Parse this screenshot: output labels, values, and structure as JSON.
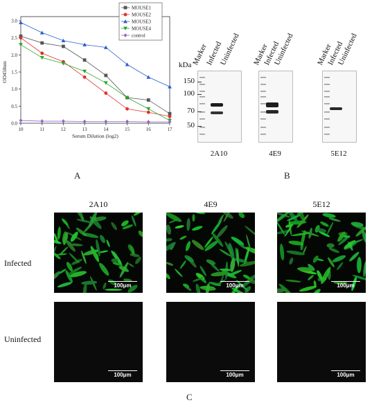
{
  "panels": {
    "a": "A",
    "b": "B",
    "c": "C"
  },
  "chart_data": {
    "type": "line",
    "xlabel": "Serum Dilution (log2)",
    "ylabel": "OD450nm",
    "xlim": [
      10,
      17
    ],
    "ylim": [
      0,
      3.0
    ],
    "xticks": [
      "10",
      "11",
      "12",
      "13",
      "14",
      "15",
      "16",
      "17"
    ],
    "yticks": [
      "0.0",
      "0.5",
      "1.0",
      "1.5",
      "2.0",
      "2.5",
      "3.0"
    ],
    "legend_position": "top-right",
    "x": [
      10,
      11,
      12,
      13,
      14,
      15,
      16,
      17
    ],
    "series": [
      {
        "name": "MOUSE1",
        "color": "#555555",
        "marker": "square",
        "values": [
          2.55,
          2.35,
          2.25,
          1.85,
          1.4,
          0.75,
          0.68,
          0.28
        ]
      },
      {
        "name": "MOUSE2",
        "color": "#e0302a",
        "marker": "circle",
        "values": [
          2.5,
          2.05,
          1.8,
          1.35,
          0.88,
          0.42,
          0.32,
          0.2
        ]
      },
      {
        "name": "MOUSE3",
        "color": "#2a5fd0",
        "marker": "triangle-up",
        "values": [
          2.95,
          2.65,
          2.42,
          2.3,
          2.22,
          1.72,
          1.35,
          1.07
        ]
      },
      {
        "name": "MOUSE4",
        "color": "#2aa52a",
        "marker": "triangle-down",
        "values": [
          2.3,
          1.92,
          1.75,
          1.52,
          1.18,
          0.75,
          0.42,
          0.08
        ]
      },
      {
        "name": "control",
        "color": "#9a62c8",
        "marker": "diamond",
        "values": [
          0.08,
          0.06,
          0.06,
          0.05,
          0.05,
          0.05,
          0.04,
          0.04
        ]
      }
    ]
  },
  "western_blot": {
    "kda_label": "kDa",
    "markers": [
      "150",
      "100",
      "70",
      "50"
    ],
    "lanes": [
      "Marker",
      "Infected",
      "Uninfected"
    ],
    "blots": [
      "2A10",
      "4E9",
      "5E12"
    ]
  },
  "immunofluorescence": {
    "columns": [
      "2A10",
      "4E9",
      "5E12"
    ],
    "rows": [
      "Infected",
      "Uninfected"
    ],
    "scale_bar": "100μm"
  }
}
